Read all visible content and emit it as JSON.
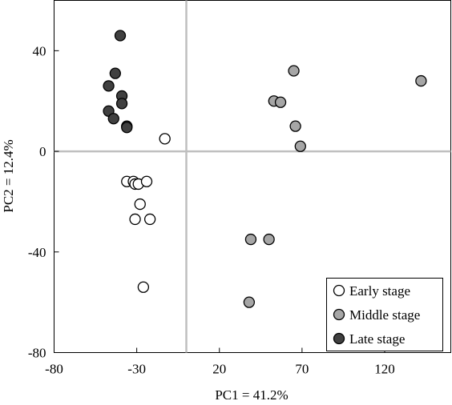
{
  "chart_data": {
    "type": "scatter",
    "xlabel": "PC1 = 41.2%",
    "ylabel": "PC2 = 12.4%",
    "xlim": [
      -80,
      160
    ],
    "ylim": [
      -80,
      60
    ],
    "xticks": [
      -80,
      -30,
      20,
      70,
      120
    ],
    "yticks": [
      -80,
      -40,
      0,
      40
    ],
    "grid": false,
    "zero_lines": true,
    "legend_position": "bottom-right",
    "series": [
      {
        "name": "Early stage",
        "color": "#ffffff",
        "points": [
          {
            "x": -13,
            "y": 5
          },
          {
            "x": -36,
            "y": -12
          },
          {
            "x": -32,
            "y": -12
          },
          {
            "x": -31,
            "y": -13
          },
          {
            "x": -29,
            "y": -13
          },
          {
            "x": -24,
            "y": -12
          },
          {
            "x": -28,
            "y": -21
          },
          {
            "x": -31,
            "y": -27
          },
          {
            "x": -22,
            "y": -27
          },
          {
            "x": -26,
            "y": -54
          }
        ]
      },
      {
        "name": "Middle stage",
        "color": "#a6a6a6",
        "points": [
          {
            "x": 142,
            "y": 28
          },
          {
            "x": 65,
            "y": 32
          },
          {
            "x": 53,
            "y": 20
          },
          {
            "x": 57,
            "y": 19.5
          },
          {
            "x": 66,
            "y": 10
          },
          {
            "x": 69,
            "y": 2
          },
          {
            "x": 50,
            "y": -35
          },
          {
            "x": 39,
            "y": -35
          },
          {
            "x": 38,
            "y": -60
          }
        ]
      },
      {
        "name": "Late stage",
        "color": "#404040",
        "points": [
          {
            "x": -40,
            "y": 46
          },
          {
            "x": -43,
            "y": 31
          },
          {
            "x": -47,
            "y": 26
          },
          {
            "x": -39,
            "y": 22
          },
          {
            "x": -39,
            "y": 19
          },
          {
            "x": -47,
            "y": 16
          },
          {
            "x": -44,
            "y": 13
          },
          {
            "x": -36,
            "y": 10
          },
          {
            "x": -36,
            "y": 9.5
          }
        ]
      }
    ]
  }
}
